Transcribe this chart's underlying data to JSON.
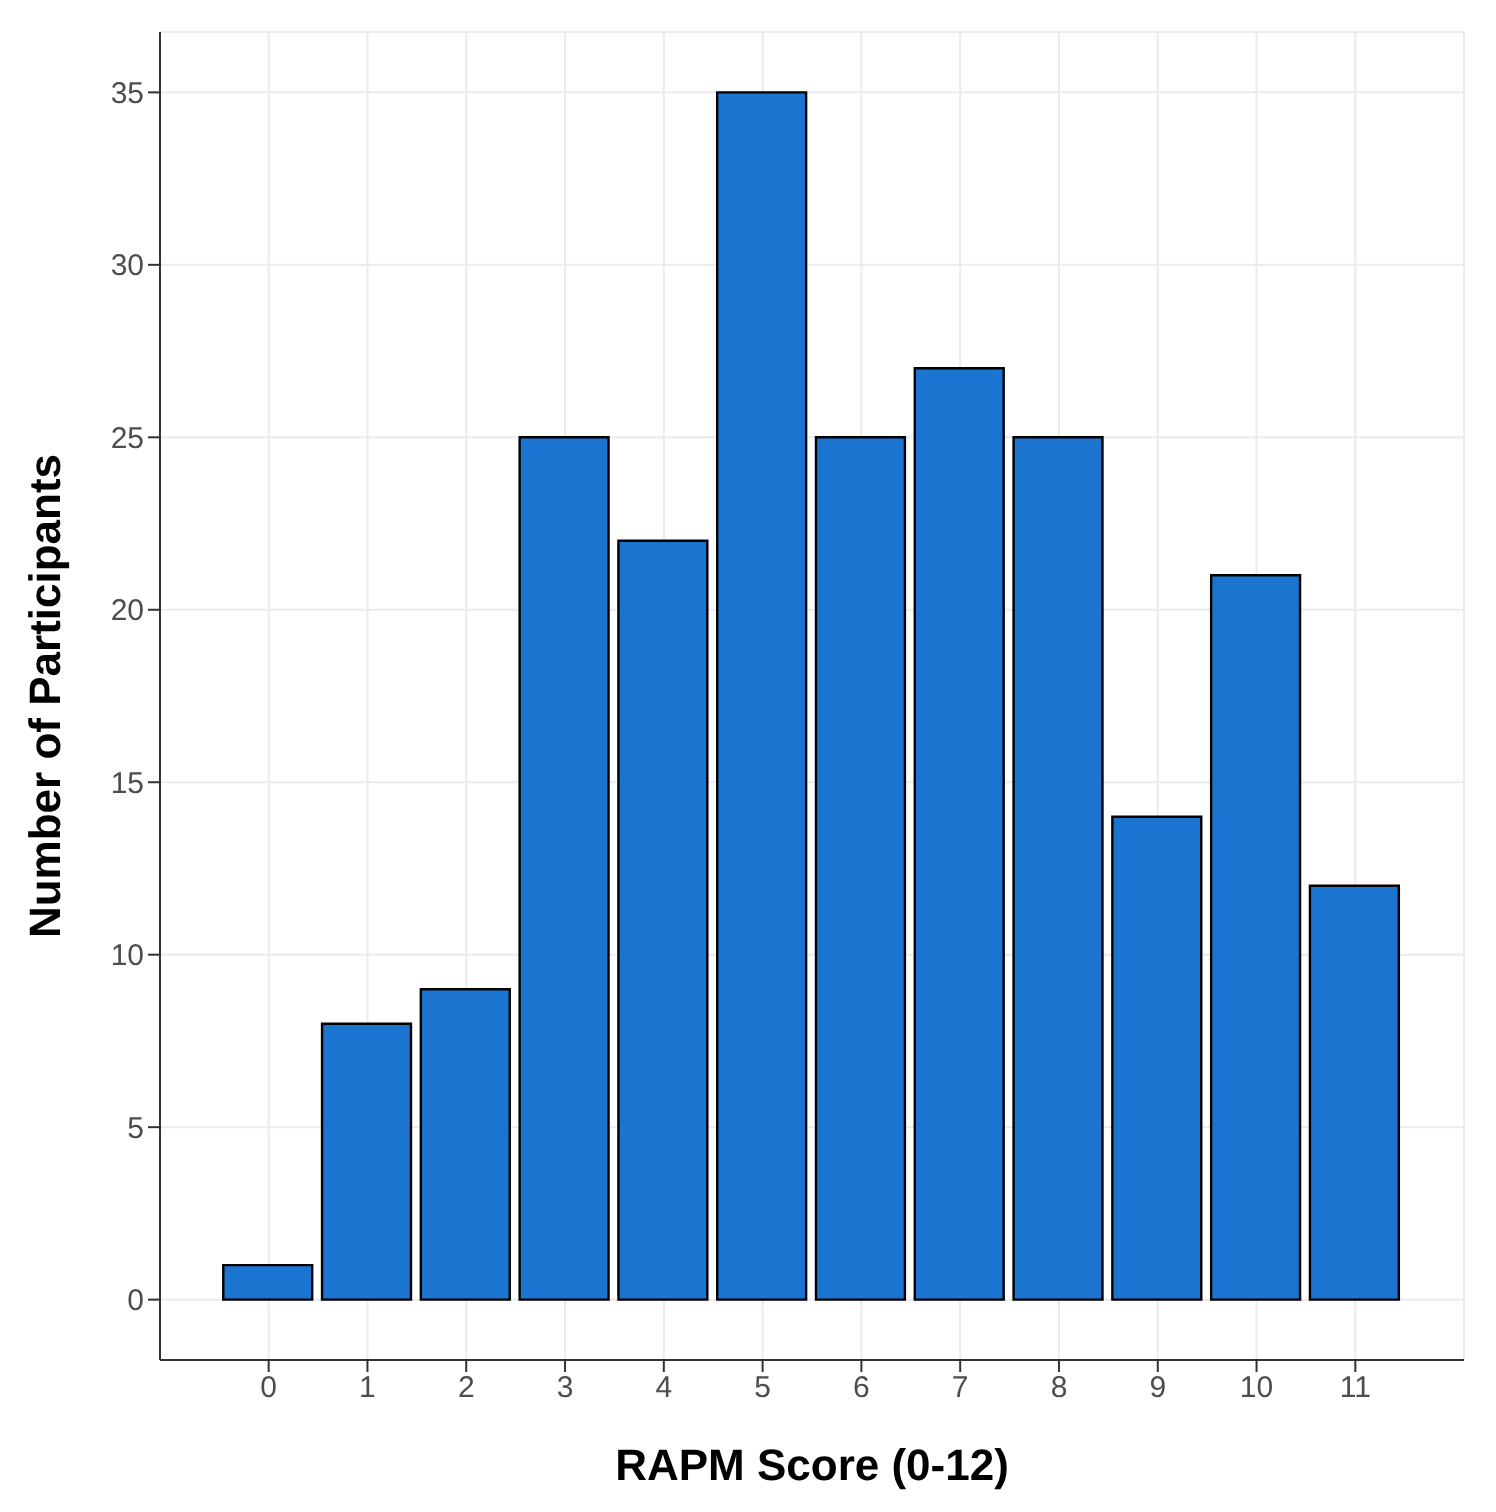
{
  "chart_data": {
    "type": "histogram",
    "xlabel": "RAPM Score (0-12)",
    "ylabel": "Number of Participants",
    "bins": [
      -0.5,
      0.5,
      1.5,
      2.5,
      3.5,
      4.5,
      5.5,
      6.5,
      7.5,
      8.5,
      9.5,
      10.5,
      11.5
    ],
    "values": [
      1,
      8,
      9,
      25,
      22,
      35,
      25,
      27,
      25,
      14,
      21,
      12
    ],
    "color": "#1b75d0",
    "xlim": [
      -1.1,
      12.1
    ],
    "xticks": [
      0,
      1,
      2,
      3,
      4,
      5,
      6,
      7,
      8,
      9,
      10,
      11
    ],
    "ylim": [
      -1.75,
      36.75
    ],
    "yticks": [
      0,
      5,
      10,
      15,
      20,
      25,
      30,
      35
    ],
    "grid": true
  }
}
